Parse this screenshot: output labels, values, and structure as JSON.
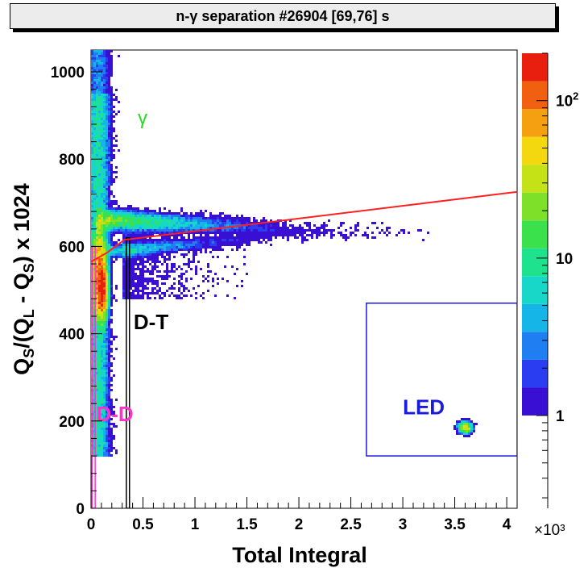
{
  "chart_data": {
    "type": "heatmap",
    "title": "n-γ separation  #26904  [69,76] s",
    "xlabel": "Total Integral",
    "x_multiplier": "×10³",
    "ylabel": "Q_S/(Q_L - Q_S) x 1024",
    "ylabel_parts": {
      "q1": "Q",
      "s1": "S",
      "mid": "/(Q",
      "l": "L",
      "minus": " - Q",
      "s2": "S",
      "end": ") x 1024"
    },
    "xlim": [
      0,
      4.1
    ],
    "ylim": [
      0,
      1050
    ],
    "x_ticks": [
      {
        "v": 0,
        "label": "0"
      },
      {
        "v": 0.5,
        "label": "0.5"
      },
      {
        "v": 1,
        "label": "1"
      },
      {
        "v": 1.5,
        "label": "1.5"
      },
      {
        "v": 2,
        "label": "2"
      },
      {
        "v": 2.5,
        "label": "2.5"
      },
      {
        "v": 3,
        "label": "3"
      },
      {
        "v": 3.5,
        "label": "3.5"
      },
      {
        "v": 4,
        "label": "4"
      }
    ],
    "y_ticks": [
      {
        "v": 0,
        "label": "0"
      },
      {
        "v": 200,
        "label": "200"
      },
      {
        "v": 400,
        "label": "400"
      },
      {
        "v": 600,
        "label": "600"
      },
      {
        "v": 800,
        "label": "800"
      },
      {
        "v": 1000,
        "label": "1000"
      }
    ],
    "z_scale": "log",
    "z_range": [
      1,
      200
    ],
    "z_ticks": [
      {
        "v": 1,
        "label": "1"
      },
      {
        "v": 10,
        "label": "10"
      },
      {
        "v": 100,
        "label": "10²"
      }
    ],
    "palette": [
      "#3a0fd4",
      "#2a3df0",
      "#1f7ff2",
      "#16b5e8",
      "#16d7c8",
      "#1fe28e",
      "#3be14d",
      "#7fe02a",
      "#c4e216",
      "#f4d80f",
      "#f4a010",
      "#f06010",
      "#e81f0f"
    ],
    "populations": [
      {
        "label": "γ",
        "x_center": 0.12,
        "y_center": 660,
        "note": "gamma band"
      },
      {
        "label": "LED",
        "x_center": 3.6,
        "y_center": 185
      }
    ],
    "annotations": [
      {
        "text": "γ",
        "x": 0.45,
        "y": 880,
        "color": "#22dd22"
      },
      {
        "text": "D-T",
        "x": 0.41,
        "y": 410,
        "color": "#000000"
      },
      {
        "text": "D-D",
        "x": 0.05,
        "y": 200,
        "color": "#ff33cc"
      },
      {
        "text": "LED",
        "x": 3.0,
        "y": 215,
        "color": "#1a1ae0"
      }
    ],
    "separation_line": {
      "color": "#ff2020",
      "points": [
        [
          0,
          565
        ],
        [
          0.15,
          585
        ],
        [
          0.32,
          615
        ],
        [
          4.1,
          725
        ]
      ]
    },
    "gates": [
      {
        "name": "D-D",
        "color": "#ff33cc",
        "x_range": [
          0.01,
          0.04
        ],
        "y_range": [
          0,
          600
        ]
      },
      {
        "name": "D-T",
        "color": "#000000",
        "x_range": [
          0.34,
          0.37
        ],
        "y_range": [
          0,
          620
        ]
      },
      {
        "name": "LED",
        "color": "#1a1ae0",
        "x_range": [
          2.65,
          4.1
        ],
        "y_range": [
          120,
          470
        ]
      }
    ]
  }
}
